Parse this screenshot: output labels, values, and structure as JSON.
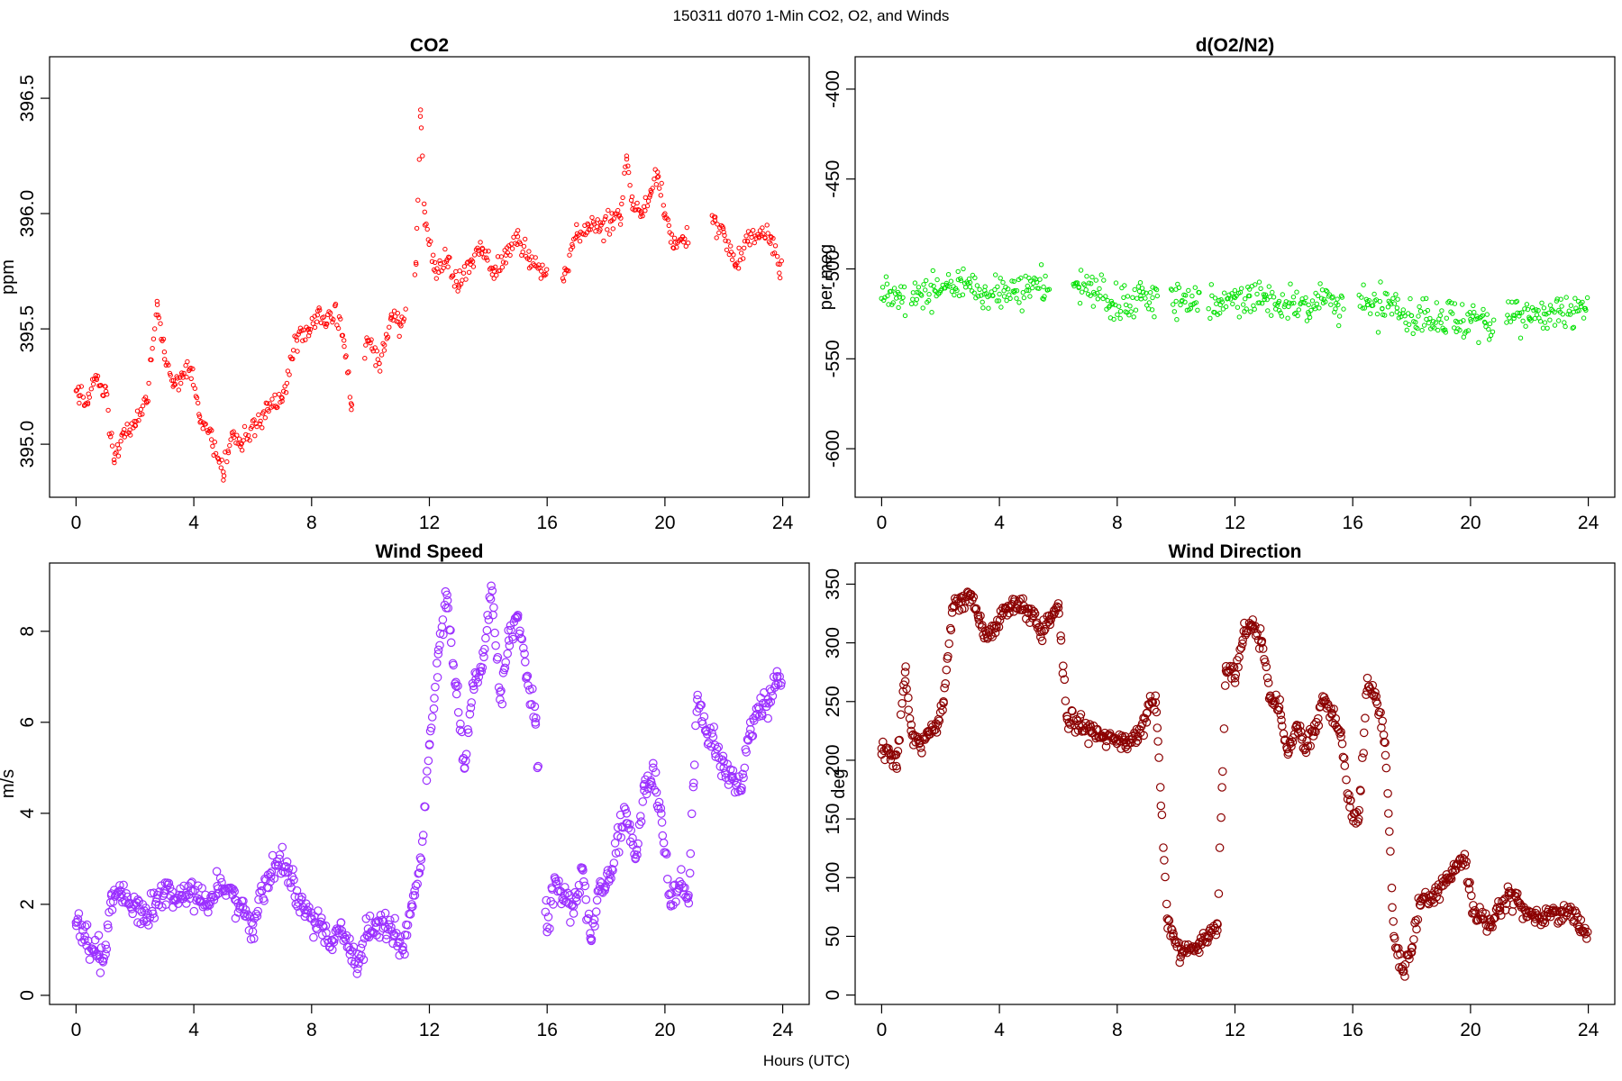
{
  "main_title": "150311   d070   1-Min CO2, O2, and Winds",
  "shared_xlabel": "Hours (UTC)",
  "chart_data": [
    {
      "type": "scatter",
      "title": "CO2",
      "xlabel": "",
      "ylabel": "ppm",
      "color": "#ff0000",
      "marker_size": "small",
      "xlim": [
        -0.9,
        24.9
      ],
      "ylim": [
        394.77,
        396.68
      ],
      "x_ticks": [
        0,
        4,
        8,
        12,
        16,
        20,
        24
      ],
      "x_tick_labels": [
        "0",
        "4",
        "8",
        "12",
        "16",
        "20",
        "24"
      ],
      "y_ticks": [
        395.0,
        395.5,
        396.0,
        396.5
      ],
      "y_tick_labels": [
        "395.0",
        "395.5",
        "396.0",
        "396.5"
      ],
      "gaps": [
        [
          9.4,
          9.8
        ],
        [
          11.2,
          11.5
        ],
        [
          16.0,
          16.5
        ],
        [
          20.8,
          21.6
        ]
      ],
      "series": [
        {
          "x": [
            0.1,
            0.4,
            0.7,
            1.0,
            1.3,
            1.6,
            2.0,
            2.4,
            2.75,
            3.0,
            3.3,
            3.6,
            3.9,
            4.2,
            4.6,
            5.0,
            5.3,
            5.6,
            6.5,
            7.0,
            7.5,
            7.9,
            8.2,
            8.5,
            8.8,
            9.1,
            9.35,
            9.9,
            10.3,
            10.7,
            11.0,
            11.55,
            11.7,
            11.85,
            12.2,
            12.6,
            13.0,
            13.4,
            13.8,
            14.2,
            14.6,
            15.0,
            15.4,
            15.8,
            16.6,
            17.0,
            17.4,
            17.8,
            18.2,
            18.5,
            18.7,
            18.9,
            19.2,
            19.5,
            19.75,
            20.0,
            20.3,
            20.6,
            21.7,
            22.0,
            22.4,
            22.8,
            23.2,
            23.6,
            23.9
          ],
          "y": [
            395.21,
            395.18,
            395.28,
            395.25,
            394.92,
            395.05,
            395.08,
            395.18,
            395.62,
            395.4,
            395.25,
            395.3,
            395.33,
            395.12,
            395.02,
            394.88,
            395.05,
            395.0,
            395.15,
            395.2,
            395.45,
            395.5,
            395.56,
            395.52,
            395.6,
            395.45,
            395.15,
            395.45,
            395.35,
            395.55,
            395.52,
            395.78,
            396.45,
            395.95,
            395.75,
            395.8,
            395.68,
            395.78,
            395.85,
            395.75,
            395.82,
            395.9,
            395.8,
            395.75,
            395.74,
            395.9,
            395.95,
            395.93,
            395.97,
            395.98,
            396.25,
            396.02,
            396.0,
            396.08,
            396.18,
            396.0,
            395.85,
            395.9,
            395.97,
            395.92,
            395.78,
            395.88,
            395.9,
            395.9,
            395.78
          ]
        }
      ]
    },
    {
      "type": "scatter",
      "title": "d(O2/N2)",
      "xlabel": "",
      "ylabel": "per meg",
      "color": "#00e000",
      "marker_size": "small",
      "xlim": [
        -0.9,
        24.9
      ],
      "ylim": [
        -627,
        -382
      ],
      "x_ticks": [
        0,
        4,
        8,
        12,
        16,
        20,
        24
      ],
      "x_tick_labels": [
        "0",
        "4",
        "8",
        "12",
        "16",
        "20",
        "24"
      ],
      "y_ticks": [
        -600,
        -550,
        -500,
        -450,
        -400
      ],
      "y_tick_labels": [
        "-600",
        "-550",
        "-500",
        "-450",
        "-400"
      ],
      "gaps": [
        [
          0.8,
          1.0
        ],
        [
          5.7,
          6.5
        ],
        [
          9.4,
          9.8
        ],
        [
          10.8,
          11.1
        ],
        [
          15.7,
          16.2
        ],
        [
          20.8,
          21.2
        ]
      ],
      "series": [
        {
          "x": [
            0.2,
            0.6,
            1.2,
            1.8,
            2.2,
            2.6,
            3.0,
            3.5,
            4.0,
            4.5,
            5.0,
            5.5,
            6.7,
            7.2,
            7.8,
            8.3,
            8.8,
            9.2,
            10.0,
            10.5,
            11.5,
            12.0,
            12.5,
            13.0,
            13.5,
            14.0,
            14.5,
            15.0,
            15.5,
            16.5,
            17.0,
            17.5,
            18.0,
            18.5,
            19.0,
            19.5,
            20.0,
            20.5,
            21.5,
            22.0,
            22.5,
            23.0,
            23.5,
            23.9
          ],
          "y": [
            -515,
            -514,
            -513,
            -512,
            -508,
            -506,
            -510,
            -512,
            -514,
            -513,
            -512,
            -510,
            -510,
            -513,
            -518,
            -520,
            -515,
            -516,
            -518,
            -520,
            -520,
            -516,
            -515,
            -517,
            -518,
            -519,
            -520,
            -519,
            -520,
            -520,
            -522,
            -524,
            -526,
            -528,
            -530,
            -529,
            -528,
            -530,
            -526,
            -528,
            -525,
            -523,
            -524,
            -522
          ]
        }
      ]
    },
    {
      "type": "scatter",
      "title": "Wind Speed",
      "xlabel": "",
      "ylabel": "m/s",
      "color": "#9b30ff",
      "marker_size": "large",
      "xlim": [
        -0.9,
        24.9
      ],
      "ylim": [
        -0.2,
        9.5
      ],
      "x_ticks": [
        0,
        4,
        8,
        12,
        16,
        20,
        24
      ],
      "x_tick_labels": [
        "0",
        "4",
        "8",
        "12",
        "16",
        "20",
        "24"
      ],
      "y_ticks": [
        0,
        2,
        4,
        6,
        8
      ],
      "y_tick_labels": [
        "0",
        "2",
        "4",
        "6",
        "8"
      ],
      "gaps": [
        [
          15.7,
          15.9
        ]
      ],
      "series": [
        {
          "x": [
            0.0,
            0.3,
            0.6,
            0.8,
            1.0,
            1.2,
            1.5,
            1.8,
            2.1,
            2.4,
            2.7,
            3.0,
            3.3,
            3.6,
            3.9,
            4.2,
            4.5,
            4.8,
            5.1,
            5.4,
            5.7,
            6.0,
            6.3,
            6.6,
            6.9,
            7.2,
            7.5,
            7.8,
            8.1,
            8.4,
            8.7,
            9.0,
            9.3,
            9.6,
            9.9,
            10.2,
            10.5,
            10.8,
            11.1,
            11.4,
            11.7,
            12.0,
            12.3,
            12.6,
            12.9,
            13.2,
            13.5,
            13.8,
            14.1,
            14.4,
            14.7,
            15.0,
            15.3,
            15.6,
            16.0,
            16.3,
            16.6,
            16.9,
            17.2,
            17.5,
            17.8,
            18.1,
            18.4,
            18.7,
            19.0,
            19.3,
            19.6,
            19.9,
            20.2,
            20.5,
            20.8,
            21.1,
            21.4,
            21.7,
            22.0,
            22.3,
            22.6,
            22.9,
            23.2,
            23.5,
            23.8
          ],
          "y": [
            1.6,
            1.3,
            1.0,
            0.8,
            0.9,
            2.2,
            2.3,
            2.0,
            2.1,
            1.7,
            2.0,
            2.3,
            2.1,
            2.2,
            2.3,
            2.1,
            2.0,
            2.4,
            2.3,
            2.1,
            1.8,
            1.4,
            2.3,
            2.5,
            3.0,
            2.7,
            2.3,
            1.8,
            1.6,
            1.5,
            1.2,
            1.6,
            0.9,
            0.7,
            1.3,
            1.6,
            1.5,
            1.3,
            1.0,
            2.0,
            2.8,
            5.5,
            7.5,
            8.8,
            6.8,
            5.0,
            6.8,
            7.2,
            9.0,
            6.5,
            7.8,
            8.3,
            7.0,
            6.0,
            1.5,
            2.5,
            2.2,
            1.8,
            2.8,
            1.2,
            2.5,
            2.5,
            3.5,
            4.0,
            3.0,
            4.5,
            5.0,
            3.8,
            2.0,
            2.5,
            2.2,
            6.5,
            5.8,
            5.5,
            5.0,
            4.8,
            4.5,
            6.0,
            6.3,
            6.5,
            7.0
          ]
        }
      ]
    },
    {
      "type": "scatter",
      "title": "Wind Direction",
      "xlabel": "",
      "ylabel": "deg",
      "color": "#8b0000",
      "marker_size": "large",
      "xlim": [
        -0.9,
        24.9
      ],
      "ylim": [
        -8,
        368
      ],
      "x_ticks": [
        0,
        4,
        8,
        12,
        16,
        20,
        24
      ],
      "x_tick_labels": [
        "0",
        "4",
        "8",
        "12",
        "16",
        "20",
        "24"
      ],
      "y_ticks": [
        0,
        50,
        100,
        150,
        200,
        250,
        300,
        350
      ],
      "y_tick_labels": [
        "0",
        "50",
        "100",
        "150",
        "200",
        "250",
        "300",
        "350"
      ],
      "gaps": [],
      "series": [
        {
          "x": [
            0.0,
            0.3,
            0.5,
            0.8,
            1.0,
            1.3,
            1.6,
            1.9,
            2.1,
            2.4,
            2.7,
            3.0,
            3.3,
            3.6,
            3.9,
            4.2,
            4.5,
            4.8,
            5.1,
            5.4,
            5.7,
            6.0,
            6.3,
            6.7,
            7.1,
            7.5,
            7.9,
            8.3,
            8.7,
            9.0,
            9.3,
            9.7,
            9.9,
            10.2,
            10.5,
            10.8,
            11.1,
            11.4,
            11.7,
            12.0,
            12.3,
            12.6,
            12.9,
            13.2,
            13.5,
            13.8,
            14.1,
            14.4,
            14.7,
            15.0,
            15.3,
            15.6,
            15.9,
            16.2,
            16.5,
            16.8,
            17.1,
            17.4,
            17.7,
            18.0,
            18.3,
            18.6,
            18.9,
            19.2,
            19.5,
            19.8,
            20.1,
            20.4,
            20.7,
            21.0,
            21.3,
            21.6,
            21.9,
            22.2,
            22.5,
            22.8,
            23.1,
            23.4,
            23.7,
            23.9
          ],
          "y": [
            210,
            205,
            195,
            275,
            225,
            215,
            222,
            230,
            250,
            330,
            335,
            340,
            320,
            305,
            315,
            330,
            335,
            328,
            325,
            305,
            320,
            330,
            235,
            230,
            225,
            220,
            218,
            215,
            220,
            240,
            255,
            65,
            50,
            35,
            40,
            45,
            50,
            55,
            280,
            270,
            310,
            315,
            300,
            255,
            245,
            205,
            230,
            210,
            225,
            250,
            240,
            220,
            160,
            150,
            270,
            250,
            215,
            50,
            20,
            40,
            80,
            85,
            90,
            100,
            110,
            120,
            70,
            65,
            60,
            75,
            85,
            80,
            70,
            65,
            68,
            70,
            72,
            75,
            58,
            52
          ]
        }
      ]
    }
  ]
}
